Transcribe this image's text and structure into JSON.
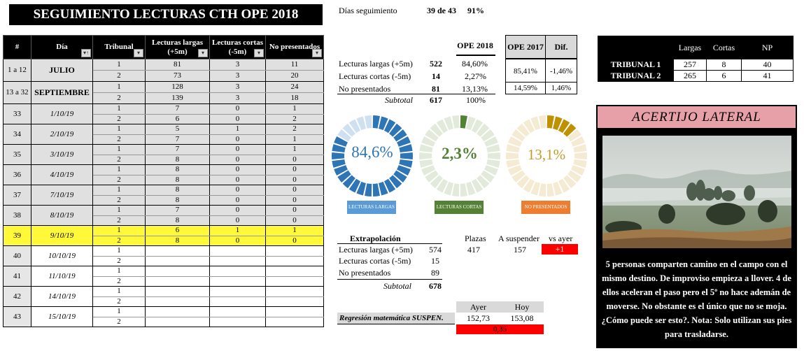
{
  "title": "SEGUIMIENTO LECTURAS CTH OPE 2018",
  "dias": {
    "label": "Días seguimiento",
    "value": "39 de 43",
    "pct": "91%"
  },
  "main_table": {
    "headers": [
      "#",
      "Día",
      "Tribunal",
      "Lecturas largas (+5m)",
      "Lecturas cortas (-5m)",
      "No presentados"
    ],
    "header_filter": "▾",
    "rows": [
      {
        "idx": "1 a 12",
        "day": "JULIO",
        "month": true,
        "shade": true,
        "t": [
          "1",
          "2"
        ],
        "l": [
          "81",
          "73"
        ],
        "c": [
          "3",
          "3"
        ],
        "n": [
          "11",
          "20"
        ]
      },
      {
        "idx": "13 a 32",
        "day": "SEPTIEMBRE",
        "month": true,
        "shade": true,
        "t": [
          "1",
          "2"
        ],
        "l": [
          "128",
          "139"
        ],
        "c": [
          "3",
          "3"
        ],
        "n": [
          "24",
          "18"
        ]
      },
      {
        "idx": "33",
        "day": "1/10/19",
        "shade": true,
        "t": [
          "1",
          "2"
        ],
        "l": [
          "7",
          "6"
        ],
        "c": [
          "0",
          "0"
        ],
        "n": [
          "1",
          "2"
        ]
      },
      {
        "idx": "34",
        "day": "2/10/19",
        "shade": true,
        "t": [
          "1",
          "2"
        ],
        "l": [
          "5",
          "7"
        ],
        "c": [
          "1",
          "0"
        ],
        "n": [
          "2",
          "1"
        ]
      },
      {
        "idx": "35",
        "day": "3/10/19",
        "shade": true,
        "t": [
          "1",
          "2"
        ],
        "l": [
          "7",
          "8"
        ],
        "c": [
          "0",
          "0"
        ],
        "n": [
          "1",
          "0"
        ]
      },
      {
        "idx": "36",
        "day": "4/10/19",
        "shade": true,
        "t": [
          "1",
          "2"
        ],
        "l": [
          "8",
          "8"
        ],
        "c": [
          "0",
          "0"
        ],
        "n": [
          "0",
          "0"
        ]
      },
      {
        "idx": "37",
        "day": "7/10/19",
        "shade": true,
        "t": [
          "1",
          "2"
        ],
        "l": [
          "8",
          "8"
        ],
        "c": [
          "0",
          "0"
        ],
        "n": [
          "0",
          "0"
        ]
      },
      {
        "idx": "38",
        "day": "8/10/19",
        "shade": true,
        "t": [
          "1",
          "2"
        ],
        "l": [
          "7",
          "8"
        ],
        "c": [
          "0",
          "0"
        ],
        "n": [
          "0",
          "0"
        ]
      },
      {
        "idx": "39",
        "day": "9/10/19",
        "hl": true,
        "t": [
          "1",
          "2"
        ],
        "l": [
          "6",
          "8"
        ],
        "c": [
          "1",
          "0"
        ],
        "n": [
          "1",
          "0"
        ]
      },
      {
        "idx": "40",
        "day": "10/10/19",
        "t": [
          "1",
          "2"
        ],
        "l": [
          "",
          ""
        ],
        "c": [
          "",
          ""
        ],
        "n": [
          "",
          ""
        ]
      },
      {
        "idx": "41",
        "day": "11/10/19",
        "t": [
          "1",
          "2"
        ],
        "l": [
          "",
          ""
        ],
        "c": [
          "",
          ""
        ],
        "n": [
          "",
          ""
        ]
      },
      {
        "idx": "42",
        "day": "14/10/19",
        "t": [
          "1",
          "2"
        ],
        "l": [
          "",
          ""
        ],
        "c": [
          "",
          ""
        ],
        "n": [
          "",
          ""
        ]
      },
      {
        "idx": "43",
        "day": "15/10/19",
        "t": [
          "1",
          "2"
        ],
        "l": [
          "",
          ""
        ],
        "c": [
          "",
          ""
        ],
        "n": [
          "",
          ""
        ]
      }
    ]
  },
  "summary": {
    "col_ope2018": "OPE 2018",
    "col_ope2017": "OPE 2017",
    "col_dif": "Dif.",
    "rows": [
      {
        "label": "Lecturas largas  (+5m)",
        "value": "522",
        "pct": "84,60%"
      },
      {
        "label": "Lecturas cortas (-5m)",
        "value": "14",
        "pct": "2,27%"
      },
      {
        "label": "No presentados",
        "value": "81",
        "pct": "13,13%"
      }
    ],
    "subtotal_label": "Subtotal",
    "subtotal_value": "617",
    "subtotal_pct": "100%",
    "ope2017_a": "85,41%",
    "dif_a": "-1,46%",
    "ope2017_b": "14,59%",
    "dif_b": "1,46%"
  },
  "gauges": [
    {
      "value": "84,6%",
      "fraction": 0.846,
      "label": "LECTURAS LARGAS",
      "color": "#2e75b6",
      "track": "#cfe0f0",
      "text": "#2e75b6",
      "label_bg": "#5b9bd5"
    },
    {
      "value": "2,3%",
      "fraction": 0.023,
      "label": "LECTURAS CORTAS",
      "color": "#548235",
      "track": "#e2ebdb",
      "text": "#548235",
      "label_bg": "#548235"
    },
    {
      "value": "13,1%",
      "fraction": 0.131,
      "label": "NO PRESENTADOS",
      "color": "#bf9000",
      "track": "#f5ead2",
      "text": "#c49a2c",
      "label_bg": "#ed7d31"
    }
  ],
  "extrapolacion": {
    "title": "Extrapolación",
    "col_plazas": "Plazas",
    "col_suspender": "A suspender",
    "col_vsayer": "vs ayer",
    "rows": [
      {
        "label": "Lecturas largas  (+5m)",
        "value": "574",
        "plazas": "417",
        "suspender": "157",
        "vsayer": "+1"
      },
      {
        "label": "Lecturas cortas (-5m)",
        "value": "15"
      },
      {
        "label": "No presentados",
        "value": "89"
      }
    ],
    "subtotal_label": "Subtotal",
    "subtotal_value": "678"
  },
  "regresion": {
    "label": "Regresión matemática SUSPEN.",
    "col_ayer": "Ayer",
    "col_hoy": "Hoy",
    "ayer": "152,73",
    "hoy": "153,08",
    "diff": "0,35"
  },
  "tribunales": {
    "headers": [
      "Largas",
      "Cortas",
      "NP"
    ],
    "rows": [
      {
        "name": "TRIBUNAL 1",
        "largas": "257",
        "cortas": "8",
        "np": "40"
      },
      {
        "name": "TRIBUNAL 2",
        "largas": "265",
        "cortas": "6",
        "np": "41"
      }
    ]
  },
  "riddle": {
    "title": "ACERTIJO LATERAL",
    "text": "5 personas comparten camino en el campo con el mismo destino. De improviso empieza a llover. 4 de ellos aceleran el paso pero el 5º no hace ademán de moverse. No obstante es el único que no se moja. ¿Cómo puede ser esto?. Nota: Solo utilizan sus pies para trasladarse."
  },
  "colors": {
    "highlight": "#fff93a",
    "red": "#ff0000",
    "shade": "#e0e0e0"
  }
}
